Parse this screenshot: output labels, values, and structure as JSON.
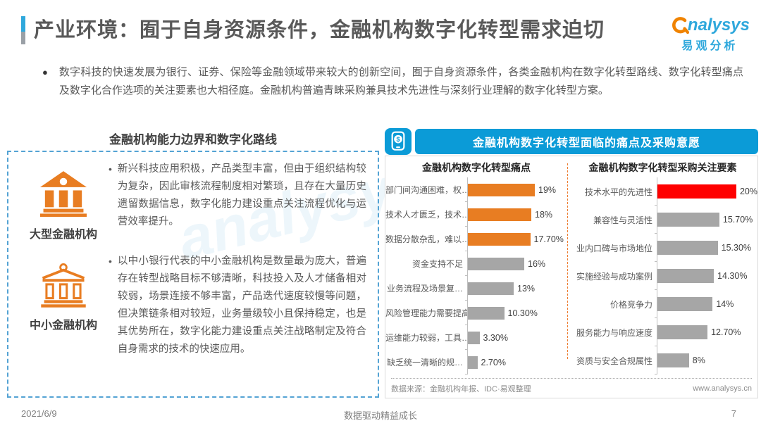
{
  "header": {
    "title": "产业环境：囿于自身资源条件，金融机构数字化转型需求迫切"
  },
  "logo": {
    "brand_latin": "nalysys",
    "brand_cn": "易观分析"
  },
  "watermark": "analysys",
  "intro": {
    "bullet": "●",
    "text": "数字科技的快速发展为银行、证券、保险等金融领域带来较大的创新空间，囿于自身资源条件，各类金融机构在数字化转型路线、数字化转型痛点及数字化合作选项的关注要素也大相径庭。金融机构普遍青睐采购兼具技术先进性与深刻行业理解的数字化转型方案。"
  },
  "left_panel": {
    "title": "金融机构能力边界和数字化路线",
    "items": [
      {
        "icon": "bank-filled-icon",
        "label": "大型金融机构",
        "bullet": "•",
        "text": "新兴科技应用积极，产品类型丰富，但由于组织结构较为复杂，因此审核流程制度相对繁琐，且存在大量历史遗留数据信息，数字化能力建设重点关注流程优化与运营效率提升。"
      },
      {
        "icon": "bank-outline-icon",
        "label": "中小金融机构",
        "bullet": "•",
        "text": "以中小银行代表的中小金融机构是数量最为庞大，普遍存在转型战略目标不够清晰，科技投入及人才储备相对较弱，场景连接不够丰富，产品迭代速度较慢等问题，但决策链条相对较短，业务量级较小且保持稳定，也是其优势所在，数字化能力建设重点关注战略制定及符合自身需求的技术的快速应用。"
      }
    ]
  },
  "right_panel": {
    "header": "金融机构数字化转型面临的痛点及采购意愿",
    "source": "数据来源：金融机构年报、IDC·易观整理",
    "website": "www.analysys.cn"
  },
  "chart_data": [
    {
      "type": "bar",
      "orientation": "horizontal",
      "title": "金融机构数字化转型痛点",
      "categories": [
        "部门间沟通困难，权…",
        "技术人才匮乏，技术…",
        "数据分散杂乱，难以…",
        "资金支持不足",
        "业务流程及场景复…",
        "风险管理能力需要提高",
        "运维能力较弱，工具…",
        "缺乏统一清晰的规…"
      ],
      "values": [
        19,
        18,
        17.7,
        16,
        13,
        10.3,
        3.3,
        2.7
      ],
      "value_labels": [
        "19%",
        "18%",
        "17.70%",
        "16%",
        "13%",
        "10.30%",
        "3.30%",
        "2.70%"
      ],
      "bar_colors": [
        "#E87D22",
        "#E87D22",
        "#E87D22",
        "#A6A6A6",
        "#A6A6A6",
        "#A6A6A6",
        "#A6A6A6",
        "#A6A6A6"
      ],
      "xlim": [
        0,
        20
      ],
      "grid": false,
      "legend": false
    },
    {
      "type": "bar",
      "orientation": "horizontal",
      "title": "金融机构数字化转型采购关注要素",
      "categories": [
        "技术水平的先进性",
        "兼容性与灵活性",
        "业内口碑与市场地位",
        "实施经验与成功案例",
        "价格竞争力",
        "服务能力与响应速度",
        "资质与安全合规属性"
      ],
      "values": [
        20,
        15.7,
        15.3,
        14.3,
        14,
        12.7,
        8
      ],
      "value_labels": [
        "20%",
        "15.70%",
        "15.30%",
        "14.30%",
        "14%",
        "12.70%",
        "8%"
      ],
      "bar_colors": [
        "#FF0000",
        "#A6A6A6",
        "#A6A6A6",
        "#A6A6A6",
        "#A6A6A6",
        "#A6A6A6",
        "#A6A6A6"
      ],
      "xlim": [
        0,
        20
      ],
      "grid": false,
      "legend": false
    }
  ],
  "footer": {
    "date": "2021/6/9",
    "center": "数据驱动精益成长",
    "page": "7"
  },
  "colors": {
    "accent_blue": "#0B9BD7",
    "logo_blue": "#2FA8DC",
    "logo_orange": "#F08300",
    "bar_orange": "#E87D22",
    "bar_gray": "#A6A6A6",
    "bar_red": "#FF0000",
    "divider_orange": "#ED7D31",
    "box_dash_blue": "#54A3D4"
  }
}
